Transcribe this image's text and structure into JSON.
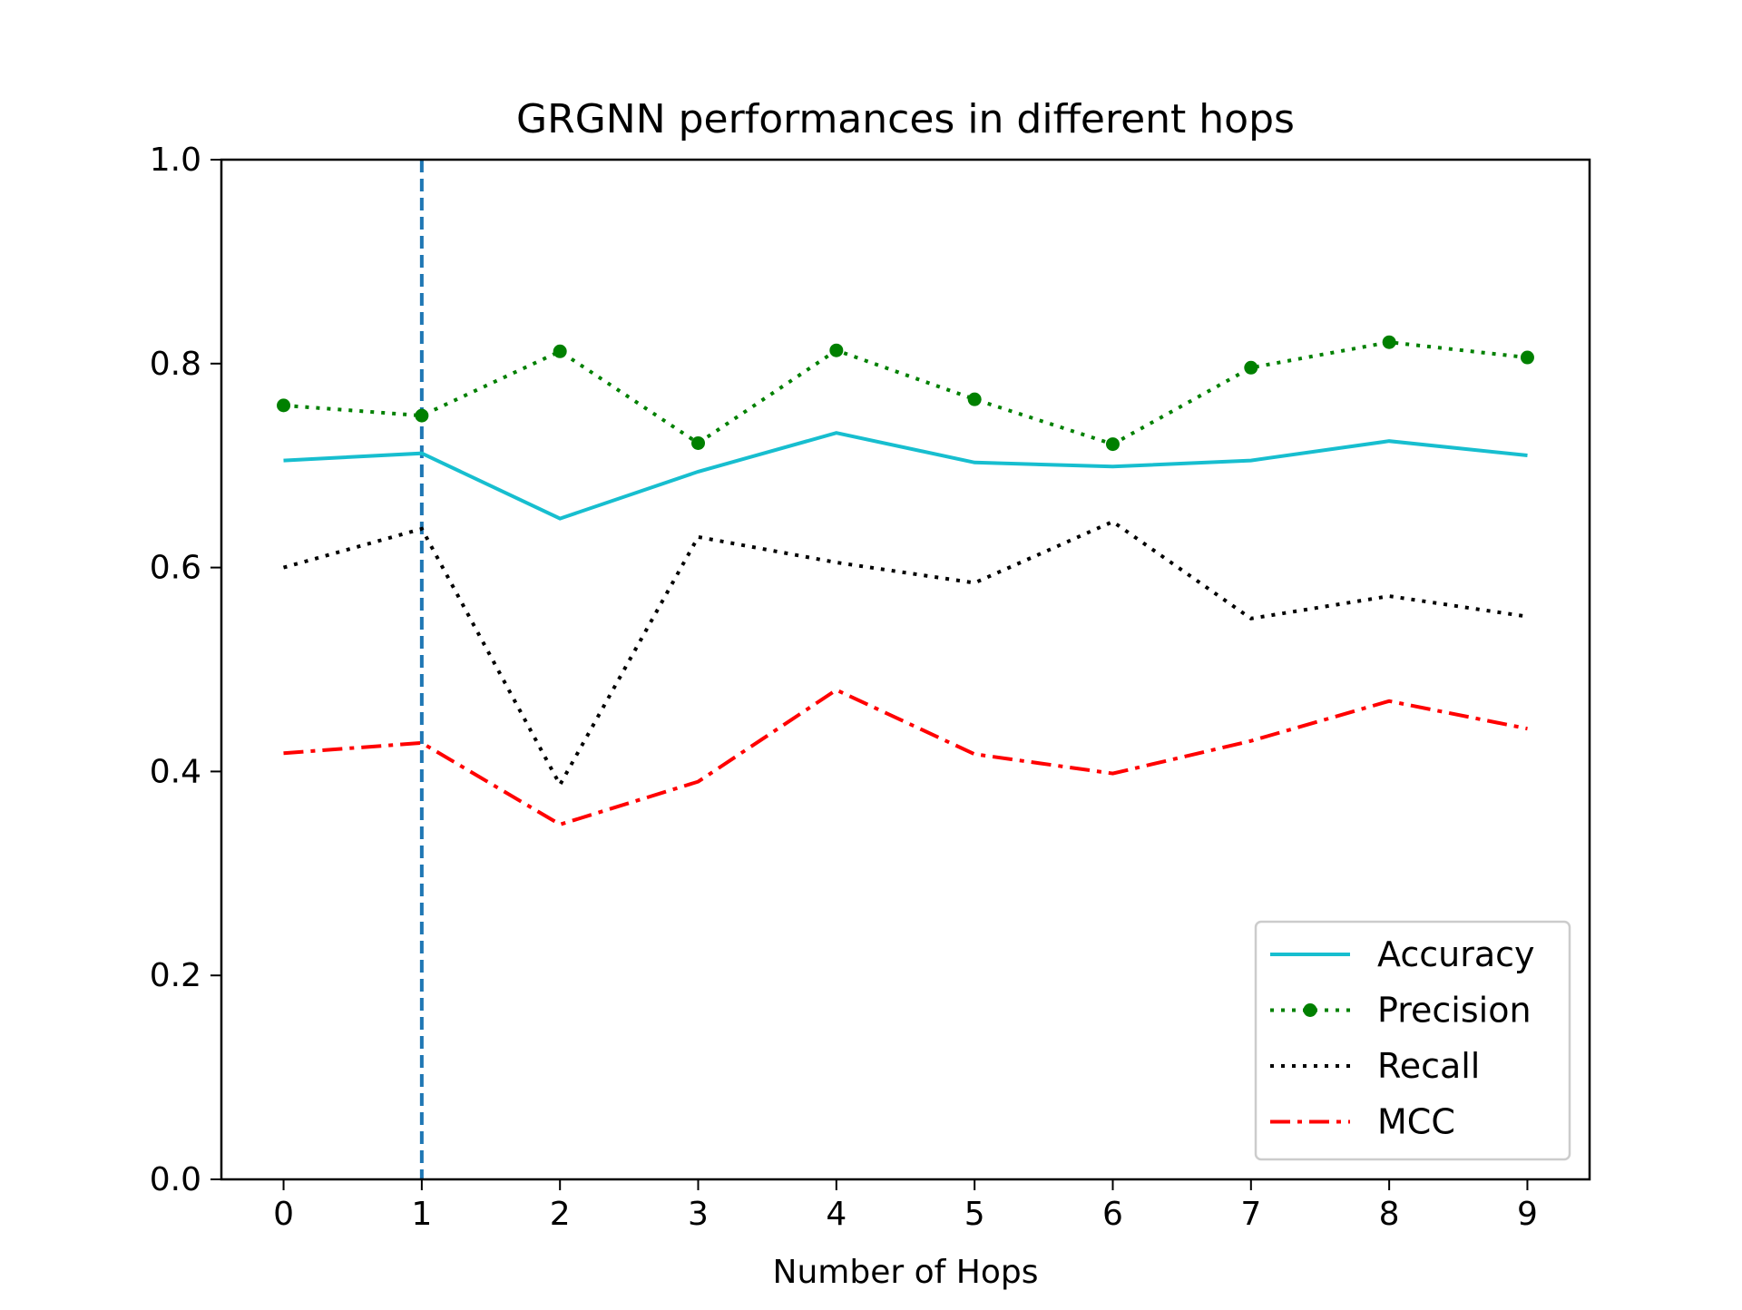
{
  "chart_data": {
    "type": "line",
    "title": "GRGNN performances in different hops",
    "xlabel": "Number of Hops",
    "ylabel": "",
    "x": [
      0,
      1,
      2,
      3,
      4,
      5,
      6,
      7,
      8,
      9
    ],
    "xlim": [
      -0.45,
      9.45
    ],
    "ylim": [
      0.0,
      1.0
    ],
    "yticks": [
      "0.0",
      "0.2",
      "0.4",
      "0.6",
      "0.8",
      "1.0"
    ],
    "xticks": [
      "0",
      "1",
      "2",
      "3",
      "4",
      "5",
      "6",
      "7",
      "8",
      "9"
    ],
    "grid": false,
    "legend_position": "lower-right",
    "vline": {
      "x": 1,
      "color": "#1f77b4",
      "style": "dashed"
    },
    "series": [
      {
        "name": "Accuracy",
        "color": "#17becf",
        "style": "solid",
        "marker": "none",
        "values": [
          0.705,
          0.712,
          0.648,
          0.694,
          0.732,
          0.703,
          0.699,
          0.705,
          0.724,
          0.71
        ]
      },
      {
        "name": "Precision",
        "color": "#008000",
        "style": "dotted",
        "marker": "circle",
        "values": [
          0.759,
          0.749,
          0.812,
          0.722,
          0.813,
          0.765,
          0.721,
          0.796,
          0.821,
          0.806
        ]
      },
      {
        "name": "Recall",
        "color": "#000000",
        "style": "dotted",
        "marker": "none",
        "values": [
          0.6,
          0.638,
          0.387,
          0.63,
          0.605,
          0.585,
          0.645,
          0.55,
          0.572,
          0.552
        ]
      },
      {
        "name": "MCC",
        "color": "#ff0000",
        "style": "dashdot",
        "marker": "none",
        "values": [
          0.418,
          0.428,
          0.348,
          0.39,
          0.48,
          0.417,
          0.398,
          0.43,
          0.469,
          0.442
        ]
      }
    ]
  }
}
